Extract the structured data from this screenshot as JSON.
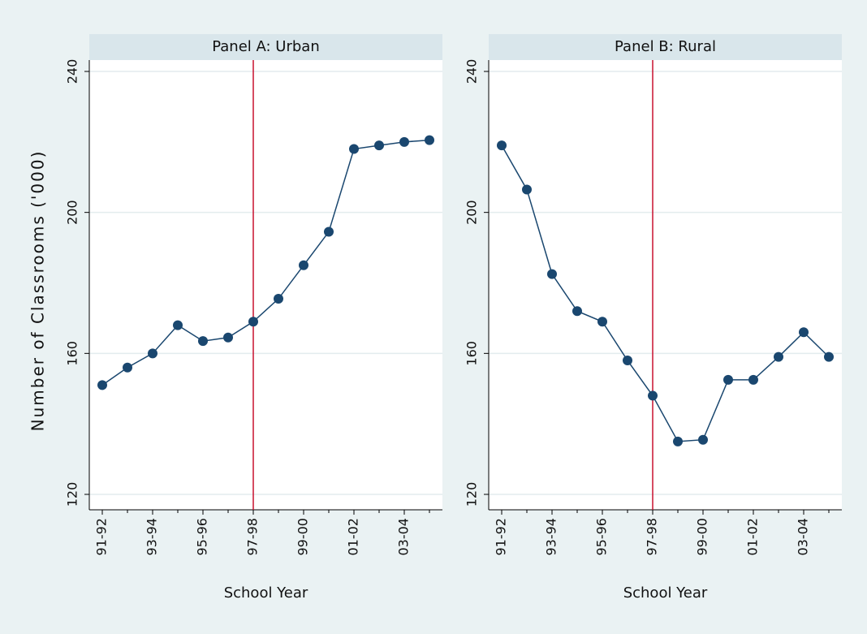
{
  "chart_data": [
    {
      "type": "line",
      "title": "Panel A: Urban",
      "x_label": "School Year",
      "y_label": "Number of Classrooms ('000)",
      "categories": [
        "91-92",
        null,
        "93-94",
        null,
        "95-96",
        null,
        "97-98",
        null,
        "99-00",
        null,
        "01-02",
        null,
        "03-04",
        null
      ],
      "values": [
        151,
        156,
        160,
        168,
        163.5,
        164.5,
        169,
        175.5,
        185,
        194.5,
        218,
        219,
        220,
        220.5
      ],
      "color": "#1a476f",
      "ylim": [
        120,
        240
      ],
      "yticks": [
        120,
        160,
        200,
        240
      ],
      "grid": true,
      "reference_line": {
        "x": "97-98",
        "color": "#c8102e"
      }
    },
    {
      "type": "line",
      "title": "Panel B: Rural",
      "x_label": "School Year",
      "categories": [
        "91-92",
        null,
        "93-94",
        null,
        "95-96",
        null,
        "97-98",
        null,
        "99-00",
        null,
        "01-02",
        null,
        "03-04",
        null
      ],
      "values": [
        219,
        206.5,
        182.5,
        172,
        169,
        158,
        148,
        135,
        135.5,
        152.5,
        152.5,
        159,
        166,
        159
      ],
      "color": "#1a476f",
      "ylim": [
        120,
        240
      ],
      "yticks": [
        120,
        160,
        200,
        240
      ],
      "grid": true,
      "reference_line": {
        "x": "97-98",
        "color": "#c8102e"
      }
    }
  ]
}
